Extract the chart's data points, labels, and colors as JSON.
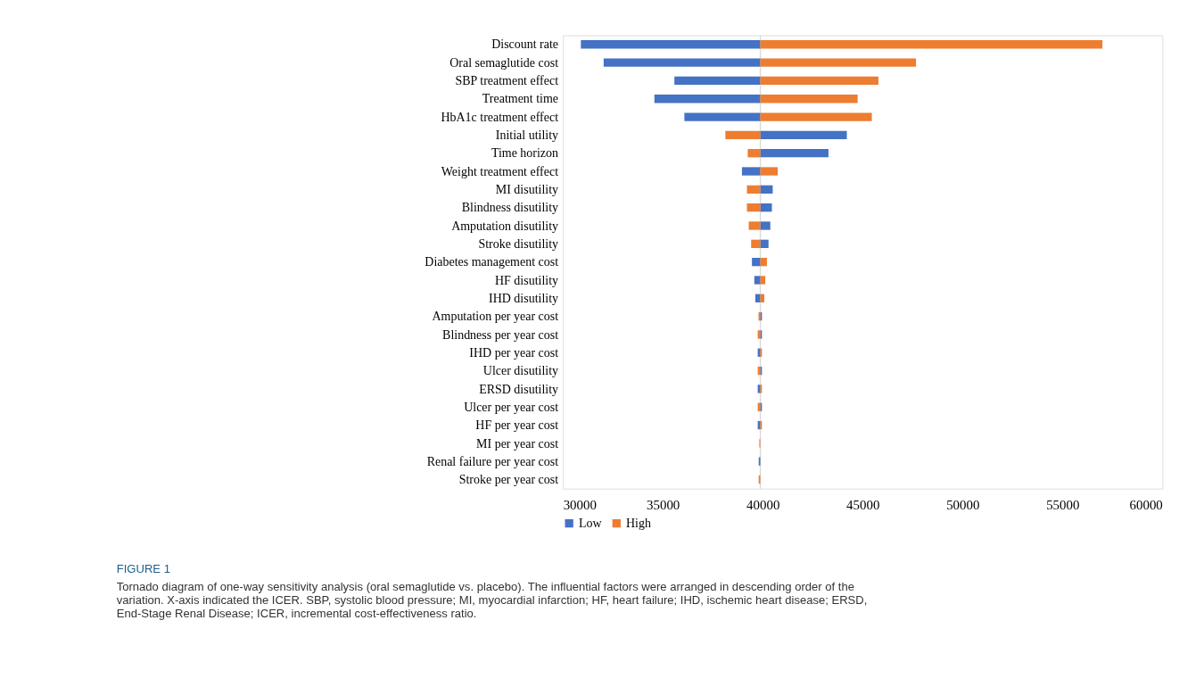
{
  "chart_data": {
    "type": "bar",
    "orientation": "horizontal",
    "title": "FIGURE 1",
    "subtitle": "Tornado diagram of one-way sensitivity analysis (oral semaglutide vs. placebo). The influential factors were arranged in descending order of the variation. X-axis indicated the ICER. SBP, systolic blood pressure; MI, myocardial infarction; HF, heart failure; IHD, ischemic heart disease; ERSD, End-Stage Renal Disease; ICER, incremental cost-effectiveness ratio.",
    "categories": [
      "Discount rate",
      "Oral semaglutide cost",
      "SBP treatment effect",
      "Treatment time",
      "HbA1c treatment effect",
      "Initial utility",
      "Time horizon",
      "Weight treatment effect",
      "MI disutility",
      "Blindness disutility",
      "Amputation disutility",
      "Stroke disutility",
      "Diabetes management cost",
      "HF disutility",
      "IHD disutility",
      "Amputation per year cost",
      "Blindness per year cost",
      "IHD per year cost",
      "Ulcer disutility",
      "ERSD disutility",
      "Ulcer per year cost",
      "HF per year cost",
      "MI per year cost",
      "Renal failure per year cost",
      "Stroke per year cost"
    ],
    "series": [
      {
        "name": "Low",
        "color": "#4472c4",
        "base": [
          39880,
          39880,
          39880,
          39880,
          39880,
          39880,
          39880,
          39880,
          39880,
          39880,
          39880,
          39880,
          39880,
          39880,
          39880,
          39880,
          39880,
          39880,
          39880,
          39880,
          39880,
          39880,
          null,
          39880,
          null
        ],
        "values": [
          -8980,
          -7840,
          -4300,
          -5300,
          -3800,
          4330,
          3410,
          -920,
          620,
          580,
          500,
          410,
          -420,
          -300,
          -250,
          80,
          80,
          -130,
          80,
          -130,
          80,
          -130,
          null,
          -80,
          null
        ]
      },
      {
        "name": "High",
        "color": "#ed7d31",
        "base": [
          39880,
          39880,
          39880,
          39880,
          39880,
          39880,
          39880,
          39880,
          39880,
          39880,
          39880,
          39880,
          39880,
          39880,
          39880,
          39880,
          39880,
          39880,
          39880,
          39880,
          39880,
          39880,
          39880,
          null,
          39880
        ],
        "values": [
          17120,
          7790,
          5910,
          4870,
          5580,
          -1750,
          -630,
          870,
          -670,
          -670,
          -580,
          -460,
          330,
          250,
          200,
          -90,
          -130,
          80,
          -130,
          80,
          -130,
          80,
          -50,
          null,
          -80
        ]
      }
    ],
    "xlim": [
      30000,
      60000
    ],
    "xticks": [
      30000,
      35000,
      40000,
      45000,
      50000,
      55000,
      60000
    ],
    "ref_lines": [
      {
        "axis": "x",
        "value": 39880,
        "color": "#d9d9d9"
      }
    ],
    "grid": false,
    "legend": "bottom"
  }
}
